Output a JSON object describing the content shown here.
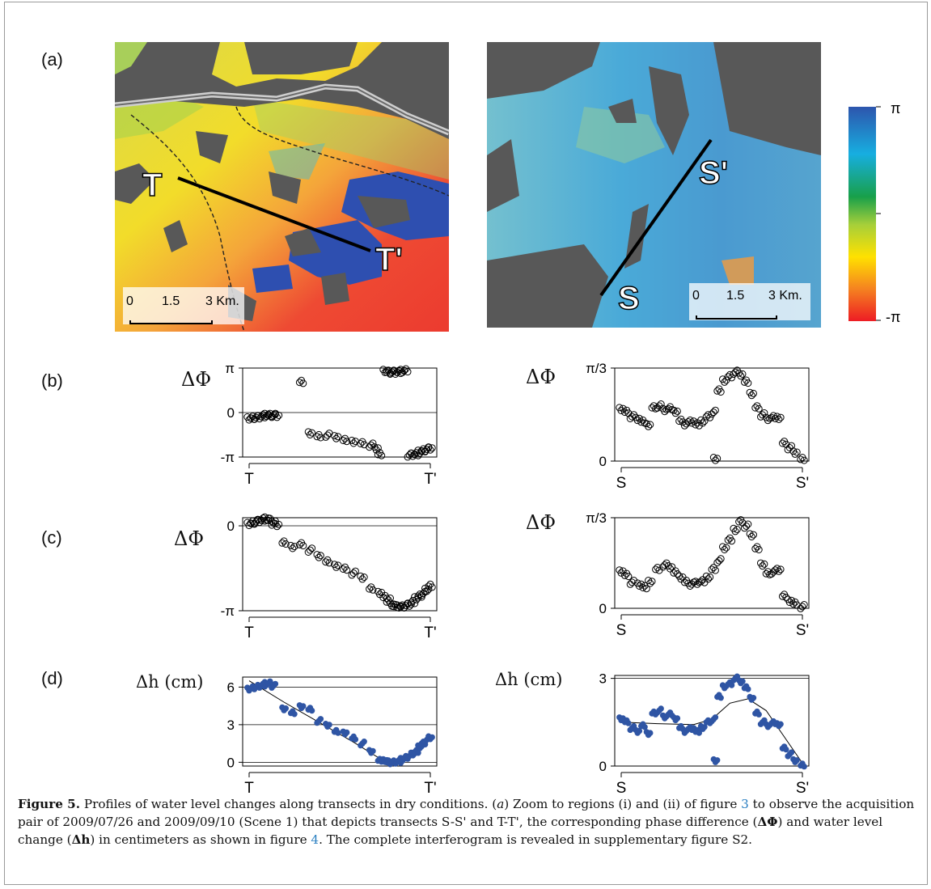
{
  "panels": {
    "a": "(a)",
    "b": "(b)",
    "c": "(c)",
    "d": "(d)"
  },
  "map_left": {
    "start_label": "T",
    "end_label": "T'",
    "scale": {
      "labels": [
        "0",
        "1.5",
        "3 Km."
      ]
    }
  },
  "map_right": {
    "start_label": "S",
    "end_label": "S'",
    "scale": {
      "labels": [
        "0",
        "1.5",
        "3 Km."
      ]
    }
  },
  "colorbar": {
    "top": "π",
    "bottom": "-π",
    "colors": [
      "#2d55ad",
      "#17aee0",
      "#18a04a",
      "#a6cf3a",
      "#ffe100",
      "#f58220",
      "#ed1c24"
    ]
  },
  "colors": {
    "profile_d": "#2f55a4",
    "caption_link": "#2a7fc1",
    "nodata": "#565656"
  },
  "chart_data": [
    {
      "id": "b-left",
      "type": "scatter",
      "ylabel": "ΔΦ",
      "yticks": [
        "π",
        "0",
        "-π"
      ],
      "ylim": [
        -3.14159,
        3.14159
      ],
      "xticks": [
        "T",
        "T'"
      ],
      "x": [
        0,
        0.02,
        0.04,
        0.06,
        0.08,
        0.1,
        0.12,
        0.14,
        0.16,
        0.3,
        0.35,
        0.4,
        0.45,
        0.5,
        0.55,
        0.6,
        0.65,
        0.7,
        0.73,
        0.75,
        0.78,
        0.8,
        0.82,
        0.84,
        0.86,
        0.88,
        0.9,
        0.92,
        0.94,
        0.96,
        0.98,
        1.0,
        1.02,
        1.04
      ],
      "y": [
        -0.45,
        -0.4,
        -0.35,
        -0.3,
        -0.22,
        -0.2,
        -0.2,
        -0.2,
        -0.2,
        2.2,
        -1.5,
        -1.7,
        -1.6,
        -1.7,
        -1.9,
        -2.1,
        -2.2,
        -2.3,
        -2.5,
        -2.9,
        2.9,
        2.85,
        2.85,
        2.85,
        2.9,
        2.9,
        2.95,
        -3.0,
        -2.95,
        -2.9,
        -2.8,
        -2.7,
        -2.6,
        -2.5
      ]
    },
    {
      "id": "b-right",
      "type": "scatter",
      "ylabel": "ΔΦ",
      "yticks": [
        "π/3",
        "0"
      ],
      "ylim": [
        0,
        1.0472
      ],
      "xticks": [
        "S",
        "S'"
      ],
      "x": [
        0,
        0.03,
        0.06,
        0.09,
        0.12,
        0.15,
        0.18,
        0.21,
        0.24,
        0.27,
        0.3,
        0.33,
        0.36,
        0.39,
        0.42,
        0.45,
        0.48,
        0.51,
        0.52,
        0.54,
        0.57,
        0.6,
        0.63,
        0.66,
        0.69,
        0.72,
        0.75,
        0.78,
        0.81,
        0.84,
        0.87,
        0.9,
        0.93,
        0.96,
        1.0
      ],
      "y": [
        0.58,
        0.55,
        0.5,
        0.48,
        0.45,
        0.4,
        0.6,
        0.62,
        0.58,
        0.6,
        0.55,
        0.45,
        0.42,
        0.45,
        0.42,
        0.44,
        0.5,
        0.55,
        0.03,
        0.8,
        0.9,
        0.95,
        1.0,
        0.98,
        0.9,
        0.75,
        0.6,
        0.52,
        0.48,
        0.5,
        0.48,
        0.2,
        0.15,
        0.1,
        0.03
      ]
    },
    {
      "id": "c-left",
      "type": "scatter",
      "ylabel": "ΔΦ",
      "yticks": [
        "0",
        "-π"
      ],
      "ylim": [
        -3.14159,
        0.3
      ],
      "xticks": [
        "T",
        "T'"
      ],
      "x": [
        0,
        0.02,
        0.04,
        0.06,
        0.08,
        0.1,
        0.12,
        0.14,
        0.16,
        0.2,
        0.25,
        0.3,
        0.35,
        0.4,
        0.45,
        0.5,
        0.55,
        0.6,
        0.65,
        0.7,
        0.75,
        0.78,
        0.8,
        0.82,
        0.84,
        0.86,
        0.88,
        0.9,
        0.92,
        0.94,
        0.96,
        0.98,
        1.0,
        1.02,
        1.04
      ],
      "y": [
        0.05,
        0.1,
        0.15,
        0.2,
        0.25,
        0.25,
        0.2,
        0.1,
        0.05,
        -0.6,
        -0.8,
        -0.7,
        -0.9,
        -1.1,
        -1.3,
        -1.5,
        -1.6,
        -1.75,
        -1.9,
        -2.3,
        -2.5,
        -2.65,
        -2.75,
        -2.9,
        -2.95,
        -3.0,
        -3.0,
        -2.95,
        -2.9,
        -2.8,
        -2.7,
        -2.6,
        -2.5,
        -2.35,
        -2.2
      ]
    },
    {
      "id": "c-right",
      "type": "scatter",
      "ylabel": "ΔΦ",
      "yticks": [
        "π/3",
        "0"
      ],
      "ylim": [
        0,
        1.0472
      ],
      "xticks": [
        "S",
        "S'"
      ],
      "x": [
        0,
        0.03,
        0.06,
        0.1,
        0.13,
        0.16,
        0.2,
        0.24,
        0.27,
        0.3,
        0.33,
        0.36,
        0.39,
        0.42,
        0.45,
        0.48,
        0.51,
        0.54,
        0.57,
        0.6,
        0.63,
        0.66,
        0.69,
        0.72,
        0.75,
        0.78,
        0.81,
        0.84,
        0.87,
        0.9,
        0.93,
        0.96,
        1.0
      ],
      "y": [
        0.42,
        0.38,
        0.3,
        0.28,
        0.25,
        0.3,
        0.45,
        0.5,
        0.48,
        0.42,
        0.35,
        0.3,
        0.28,
        0.3,
        0.32,
        0.35,
        0.45,
        0.55,
        0.7,
        0.8,
        0.9,
        1.0,
        0.95,
        0.85,
        0.7,
        0.5,
        0.4,
        0.42,
        0.45,
        0.15,
        0.08,
        0.05,
        0.02
      ]
    },
    {
      "id": "d-left",
      "type": "scatter",
      "ylabel": "Δh (cm)",
      "yticks": [
        "6",
        "3",
        "0"
      ],
      "ylim": [
        -0.3,
        6.8
      ],
      "xticks": [
        "T",
        "T'"
      ],
      "x": [
        0,
        0.02,
        0.04,
        0.06,
        0.08,
        0.1,
        0.12,
        0.14,
        0.2,
        0.25,
        0.3,
        0.35,
        0.4,
        0.45,
        0.5,
        0.55,
        0.6,
        0.65,
        0.7,
        0.75,
        0.78,
        0.8,
        0.82,
        0.84,
        0.86,
        0.88,
        0.9,
        0.92,
        0.94,
        0.96,
        0.98,
        1.0,
        1.02,
        1.04
      ],
      "y": [
        5.8,
        5.9,
        6.0,
        6.1,
        6.2,
        6.25,
        6.3,
        6.1,
        4.3,
        4.0,
        4.4,
        4.2,
        3.3,
        3.0,
        2.5,
        2.3,
        1.9,
        1.5,
        0.9,
        0.2,
        0.1,
        0.0,
        0.0,
        0.05,
        0.1,
        0.2,
        0.35,
        0.5,
        0.7,
        0.9,
        1.2,
        1.5,
        1.8,
        2.0
      ],
      "fit": [
        [
          0,
          6.5
        ],
        [
          0.2,
          4.8
        ],
        [
          0.4,
          3.2
        ],
        [
          0.6,
          1.6
        ],
        [
          0.75,
          0.3
        ],
        [
          0.85,
          0.05
        ],
        [
          0.95,
          0.8
        ],
        [
          1.04,
          1.9
        ]
      ]
    },
    {
      "id": "d-right",
      "type": "scatter",
      "ylabel": "Δh (cm)",
      "yticks": [
        "3",
        "0"
      ],
      "ylim": [
        0,
        3.1
      ],
      "xticks": [
        "S",
        "S'"
      ],
      "x": [
        0,
        0.03,
        0.06,
        0.09,
        0.12,
        0.15,
        0.18,
        0.21,
        0.24,
        0.27,
        0.3,
        0.33,
        0.36,
        0.39,
        0.42,
        0.45,
        0.48,
        0.51,
        0.52,
        0.54,
        0.57,
        0.6,
        0.63,
        0.66,
        0.69,
        0.72,
        0.75,
        0.78,
        0.81,
        0.84,
        0.87,
        0.9,
        0.93,
        0.96,
        1.0
      ],
      "y": [
        1.6,
        1.5,
        1.3,
        1.2,
        1.4,
        1.1,
        1.8,
        1.9,
        1.7,
        1.8,
        1.6,
        1.3,
        1.2,
        1.3,
        1.2,
        1.3,
        1.5,
        1.6,
        0.2,
        2.4,
        2.7,
        2.8,
        3.0,
        2.9,
        2.7,
        2.3,
        1.8,
        1.5,
        1.4,
        1.5,
        1.4,
        0.6,
        0.4,
        0.2,
        0.05
      ],
      "fit": [
        [
          0,
          1.5
        ],
        [
          0.2,
          1.45
        ],
        [
          0.4,
          1.42
        ],
        [
          0.5,
          1.6
        ],
        [
          0.6,
          2.15
        ],
        [
          0.7,
          2.3
        ],
        [
          0.8,
          1.9
        ],
        [
          0.9,
          1.0
        ],
        [
          1.0,
          0.1
        ]
      ]
    }
  ],
  "caption": {
    "figure": "Figure 5.",
    "t1": " Profiles of water level changes along transects in dry conditions. (",
    "a": "a",
    "t2": ") Zoom to regions (i) and (ii) of figure ",
    "ref1": "3",
    "t3": " to observe the acquisition pair of 2009/07/26 and 2009/09/10 (Scene 1) that depicts transects S-S' and T-T', the corresponding phase difference (",
    "dphi": "ΔΦ",
    "t4": ") and water level change (",
    "dh": "Δh",
    "t5": ") in centimeters as shown in figure ",
    "ref2": "4",
    "t6": ". The complete interferogram is revealed in supplementary figure S2."
  }
}
